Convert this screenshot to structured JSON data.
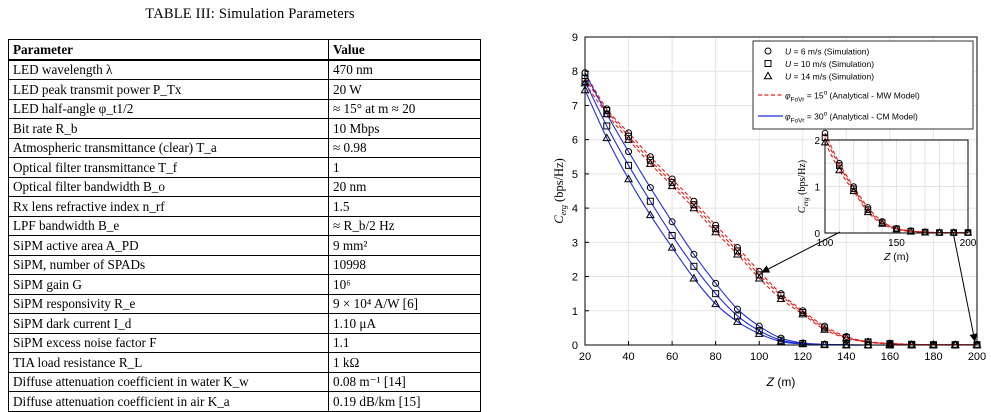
{
  "table": {
    "title": "TABLE III: Simulation Parameters",
    "headers": [
      "Parameter",
      "Value"
    ],
    "rows": [
      [
        "LED wavelength λ",
        "470 nm"
      ],
      [
        "LED peak transmit power P_Tx",
        "20 W"
      ],
      [
        "LED half-angle φ_t1/2",
        "≈ 15° at m ≈ 20"
      ],
      [
        "Bit rate R_b",
        "10 Mbps"
      ],
      [
        "Atmospheric transmittance (clear) T_a",
        "≈ 0.98"
      ],
      [
        "Optical filter transmittance T_f",
        "1"
      ],
      [
        "Optical filter bandwidth B_o",
        "20 nm"
      ],
      [
        "Rx lens refractive index n_rf",
        "1.5"
      ],
      [
        "LPF bandwidth B_e",
        "≈ R_b/2 Hz"
      ],
      [
        "SiPM active area A_PD",
        "9 mm²"
      ],
      [
        "SiPM, number of SPADs",
        "10998"
      ],
      [
        "SiPM gain G",
        "10⁶"
      ],
      [
        "SiPM responsivity R_e",
        "9 × 10⁴ A/W [6]"
      ],
      [
        "SiPM dark current I_d",
        "1.10 μA"
      ],
      [
        "SiPM excess noise factor F",
        "1.1"
      ],
      [
        "TIA load resistance R_L",
        "1 kΩ"
      ],
      [
        "Diffuse attenuation coefficient in water K_w",
        "0.08 m⁻¹ [14]"
      ],
      [
        "Diffuse attenuation coefficient in air K_a",
        "0.19 dB/km [15]"
      ]
    ]
  },
  "chart_data": [
    {
      "type": "line",
      "xlabel": "Z (m)",
      "ylabel": "C_erg (bps/Hz)",
      "xlim": [
        20,
        200
      ],
      "ylim": [
        0,
        9
      ],
      "xticks": [
        20,
        40,
        60,
        80,
        100,
        120,
        140,
        160,
        180,
        200
      ],
      "yticks": [
        0,
        1,
        2,
        3,
        4,
        5,
        6,
        7,
        8,
        9
      ],
      "grid": true,
      "legend_position": "top-right",
      "legend": [
        "U = 6 m/s (Simulation)",
        "U = 10 m/s (Simulation)",
        "U = 14 m/s (Simulation)",
        "φ_FoVr = 15° (Analytical - MW Model)",
        "φ_FoVr = 30° (Analytical - CM Model)"
      ],
      "x": [
        20,
        30,
        40,
        50,
        60,
        70,
        80,
        90,
        100,
        110,
        120,
        130,
        140,
        150,
        160,
        170,
        180,
        190,
        200
      ],
      "series": [
        {
          "name": "U = 6 m/s (Simulation)",
          "marker": "circle",
          "group": "MW",
          "values": [
            7.95,
            6.9,
            6.2,
            5.5,
            4.85,
            4.2,
            3.5,
            2.85,
            2.15,
            1.5,
            1.0,
            0.55,
            0.25,
            0.1,
            0.05,
            0.02,
            0.01,
            0.01,
            0.01
          ]
        },
        {
          "name": "U = 10 m/s (Simulation)",
          "marker": "square",
          "group": "MW",
          "values": [
            7.8,
            6.85,
            6.1,
            5.4,
            4.75,
            4.1,
            3.4,
            2.75,
            2.05,
            1.45,
            0.95,
            0.5,
            0.22,
            0.09,
            0.04,
            0.02,
            0.01,
            0.01,
            0.01
          ]
        },
        {
          "name": "U = 14 m/s (Simulation)",
          "marker": "triangle",
          "group": "MW",
          "values": [
            7.65,
            6.75,
            6.0,
            5.3,
            4.65,
            4.0,
            3.3,
            2.65,
            1.95,
            1.35,
            0.9,
            0.45,
            0.2,
            0.08,
            0.03,
            0.01,
            0.01,
            0.01,
            0.01
          ]
        },
        {
          "name": "U = 6 m/s (Simulation)",
          "marker": "circle",
          "group": "CM",
          "values": [
            7.95,
            6.75,
            5.65,
            4.6,
            3.6,
            2.65,
            1.8,
            1.05,
            0.55,
            0.2,
            0.06,
            0.02,
            0.01,
            0.0,
            0.0,
            0.0,
            0.0,
            0.0,
            0.0
          ]
        },
        {
          "name": "U = 10 m/s (Simulation)",
          "marker": "square",
          "group": "CM",
          "values": [
            7.7,
            6.4,
            5.25,
            4.2,
            3.2,
            2.3,
            1.5,
            0.85,
            0.42,
            0.14,
            0.04,
            0.01,
            0.0,
            0.0,
            0.0,
            0.0,
            0.0,
            0.0,
            0.0
          ]
        },
        {
          "name": "U = 14 m/s (Simulation)",
          "marker": "triangle",
          "group": "CM",
          "values": [
            7.45,
            6.05,
            4.85,
            3.8,
            2.85,
            1.95,
            1.2,
            0.68,
            0.33,
            0.1,
            0.03,
            0.01,
            0.0,
            0.0,
            0.0,
            0.0,
            0.0,
            0.0,
            0.0
          ]
        }
      ]
    },
    {
      "type": "line",
      "role": "inset",
      "xlabel": "Z (m)",
      "ylabel": "C_erg (bps/Hz)",
      "xlim": [
        100,
        200
      ],
      "ylim": [
        0,
        2
      ],
      "xticks": [
        100,
        150,
        200
      ],
      "yticks": [
        0,
        1,
        2
      ],
      "grid": true,
      "x": [
        100,
        110,
        120,
        130,
        140,
        150,
        160,
        170,
        180,
        190,
        200
      ],
      "series": [
        {
          "name": "U = 6 m/s (Simulation)",
          "marker": "circle",
          "values": [
            2.15,
            1.5,
            1.0,
            0.55,
            0.25,
            0.1,
            0.05,
            0.02,
            0.01,
            0.01,
            0.01
          ]
        },
        {
          "name": "U = 10 m/s (Simulation)",
          "marker": "square",
          "values": [
            2.05,
            1.45,
            0.95,
            0.5,
            0.22,
            0.09,
            0.04,
            0.02,
            0.01,
            0.01,
            0.01
          ]
        },
        {
          "name": "U = 14 m/s (Simulation)",
          "marker": "triangle",
          "values": [
            1.95,
            1.35,
            0.9,
            0.45,
            0.2,
            0.08,
            0.03,
            0.01,
            0.01,
            0.01,
            0.01
          ]
        }
      ]
    }
  ],
  "colors": {
    "mw": "#e0201c",
    "cm": "#1f2fd8",
    "grid": "#e4e4e4",
    "marker": "#000000"
  }
}
